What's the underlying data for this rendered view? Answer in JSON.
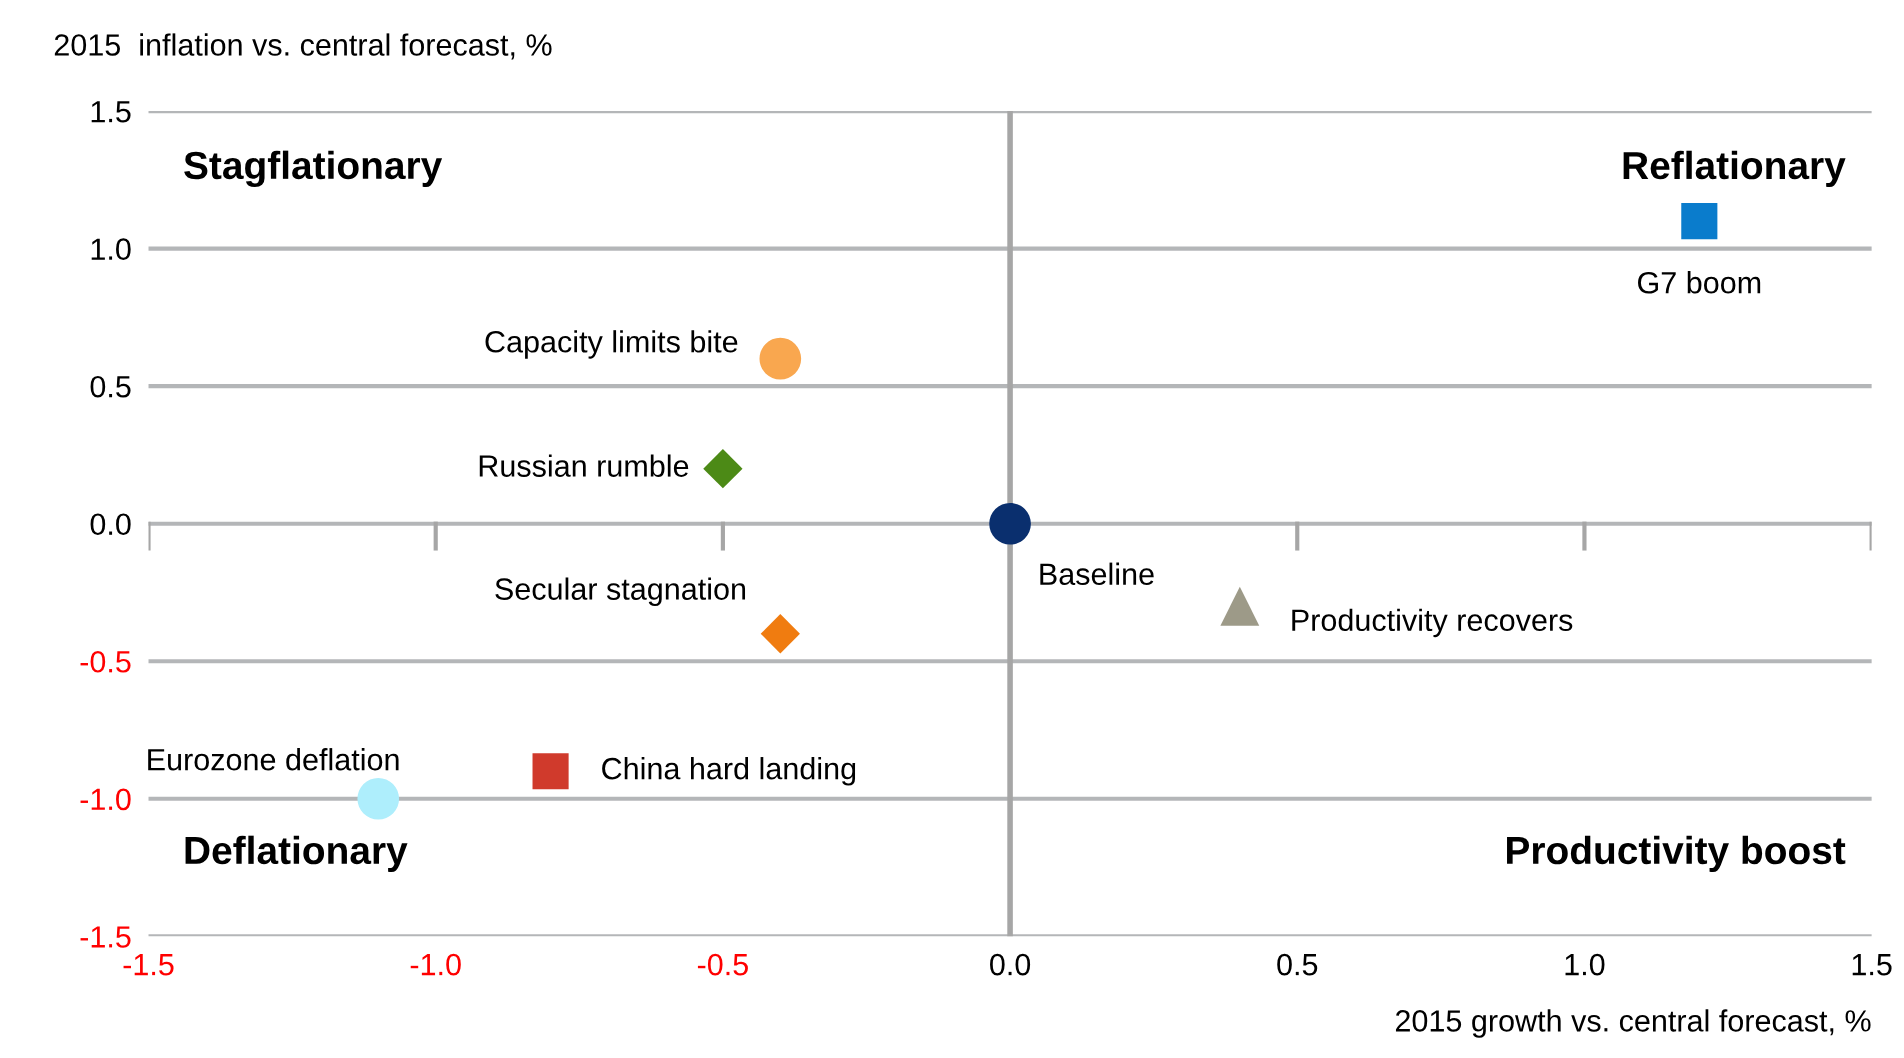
{
  "chart_data": {
    "type": "scatter",
    "ylabel": "2015  inflation vs. central forecast, %",
    "xlabel": "2015 growth vs. central forecast, %",
    "xlim": [
      -1.5,
      1.5
    ],
    "xticks": [
      {
        "value": -1.5,
        "label": "-1.5"
      },
      {
        "value": -1.0,
        "label": "-1.0"
      },
      {
        "value": -0.5,
        "label": "-0.5"
      },
      {
        "value": 0.0,
        "label": "0.0"
      },
      {
        "value": 0.5,
        "label": "0.5"
      },
      {
        "value": 1.0,
        "label": "1.0"
      },
      {
        "value": 1.5,
        "label": "1.5"
      }
    ],
    "ylim": [
      -1.5,
      1.5
    ],
    "yticks": [
      {
        "value": -1.5,
        "label": "-1.5"
      },
      {
        "value": -1.0,
        "label": "-1.0"
      },
      {
        "value": -0.5,
        "label": "-0.5"
      },
      {
        "value": 0.0,
        "label": "0.0"
      },
      {
        "value": 0.5,
        "label": "0.5"
      },
      {
        "value": 1.0,
        "label": "1.0"
      },
      {
        "value": 1.5,
        "label": "1.5"
      }
    ],
    "grid": "y",
    "legend": false,
    "ref_lines": [
      {
        "axis": "x",
        "value": 0,
        "label": null,
        "color": "#a6a6a6"
      }
    ],
    "annotations": [
      "Stagflationary",
      "Reflationary",
      "Deflationary",
      "Productivity boost"
    ],
    "series": [
      {
        "name": "G7 boom",
        "color": "#0a7ccc",
        "marker": "square",
        "x": [
          1.2
        ],
        "values": [
          1.1
        ]
      },
      {
        "name": "Capacity limits bite",
        "color": "#f9a74f",
        "marker": "circle",
        "x": [
          -0.4
        ],
        "values": [
          0.6
        ]
      },
      {
        "name": "Russian rumble",
        "color": "#4c8a16",
        "marker": "diamond",
        "x": [
          -0.5
        ],
        "values": [
          0.2
        ]
      },
      {
        "name": "Baseline",
        "color": "#0a2f6e",
        "marker": "circle",
        "x": [
          0.0
        ],
        "values": [
          0.0
        ]
      },
      {
        "name": "Secular stagnation",
        "color": "#f07c10",
        "marker": "diamond",
        "x": [
          -0.4
        ],
        "values": [
          -0.4
        ]
      },
      {
        "name": "Productivity recovers",
        "color": "#9d9a88",
        "marker": "triangle",
        "x": [
          0.4
        ],
        "values": [
          -0.3
        ]
      },
      {
        "name": "China hard landing",
        "color": "#d03a2c",
        "marker": "square",
        "x": [
          -0.8
        ],
        "values": [
          -0.9
        ]
      },
      {
        "name": "Eurozone deflation",
        "color": "#aeeefc",
        "marker": "circle",
        "x": [
          -1.1
        ],
        "values": [
          -1.0
        ]
      }
    ]
  }
}
